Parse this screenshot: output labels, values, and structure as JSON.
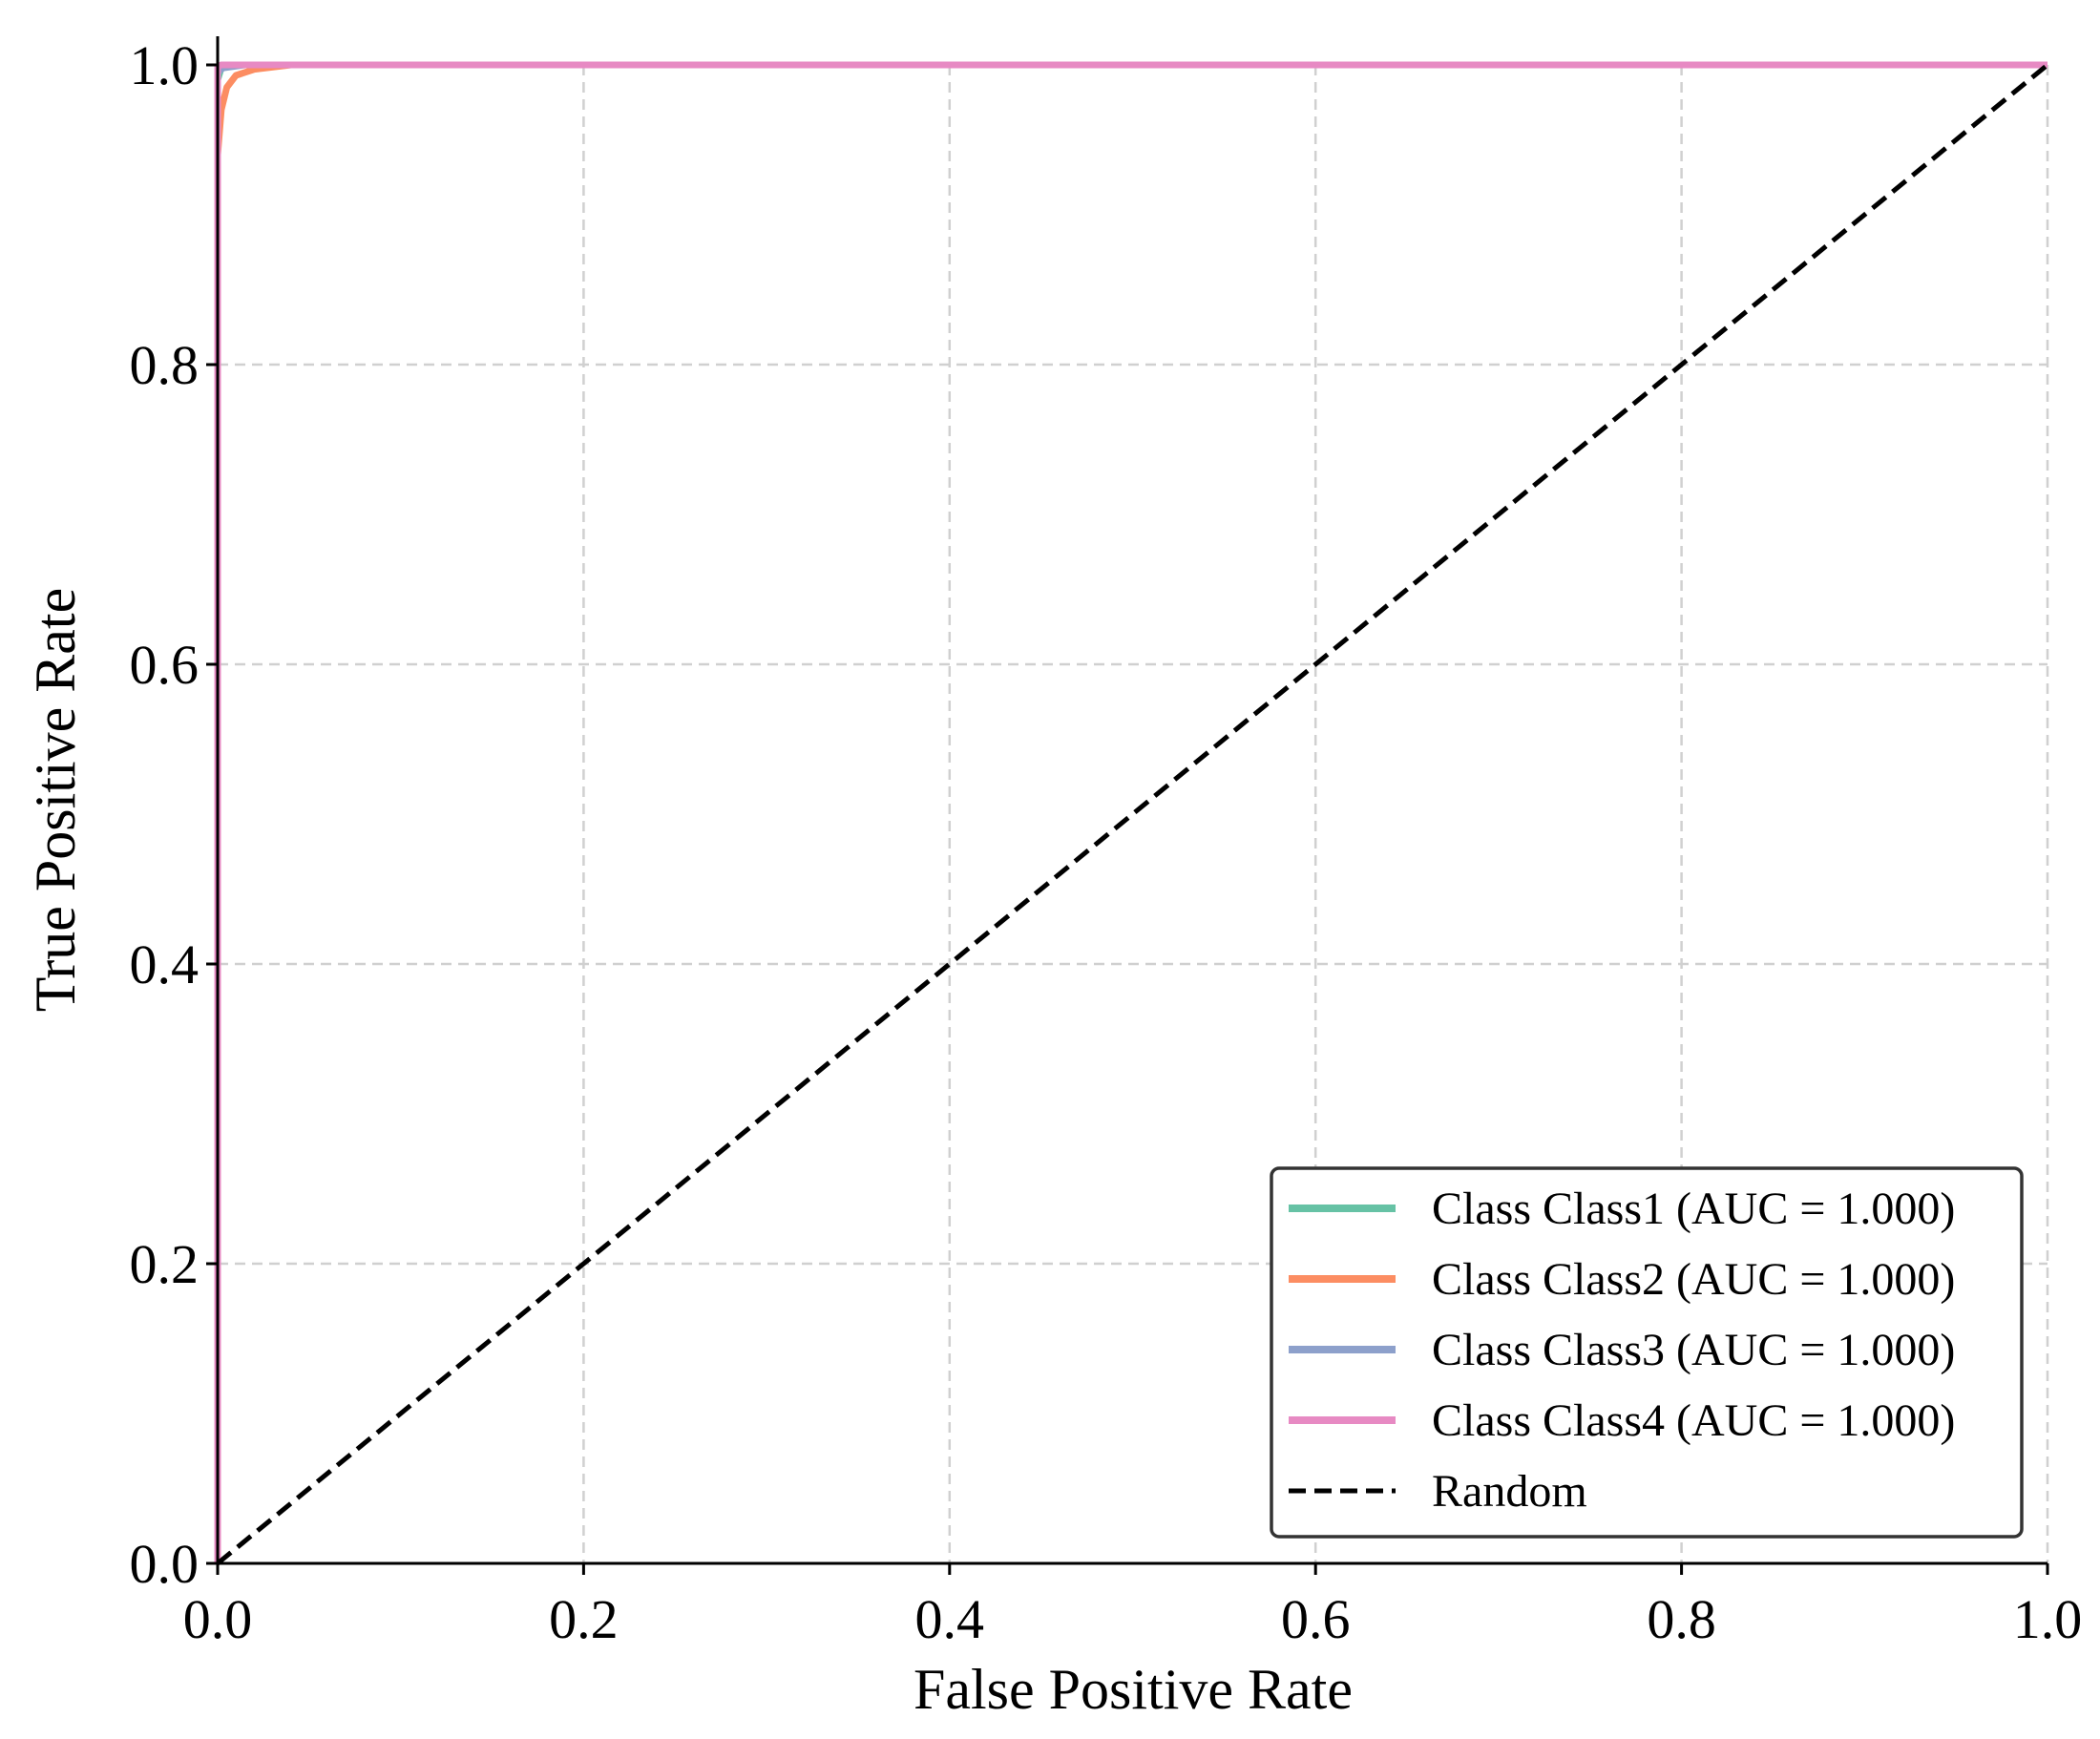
{
  "chart_data": {
    "type": "line",
    "title": "",
    "xlabel": "False Positive Rate",
    "ylabel": "True Positive Rate",
    "xlim": [
      0.0,
      1.0
    ],
    "ylim": [
      0.0,
      1.0
    ],
    "xticks": [
      "0.0",
      "0.2",
      "0.4",
      "0.6",
      "0.8",
      "1.0"
    ],
    "yticks": [
      "0.0",
      "0.2",
      "0.4",
      "0.6",
      "0.8",
      "1.0"
    ],
    "grid": true,
    "legend_position": "bottom-right",
    "series": [
      {
        "name": "Class Class1 (AUC = 1.000)",
        "color": "#66c2a5",
        "x": [
          0.0,
          0.0,
          0.002,
          0.01,
          1.0
        ],
        "y": [
          0.0,
          0.99,
          0.998,
          1.0,
          1.0
        ]
      },
      {
        "name": "Class Class2 (AUC = 1.000)",
        "color": "#fc8d62",
        "x": [
          0.0,
          0.0,
          0.002,
          0.005,
          0.01,
          0.02,
          0.04,
          1.0
        ],
        "y": [
          0.0,
          0.94,
          0.97,
          0.985,
          0.993,
          0.997,
          1.0,
          1.0
        ]
      },
      {
        "name": "Class Class3 (AUC = 1.000)",
        "color": "#8da0cb",
        "x": [
          0.0,
          0.0,
          0.003,
          0.015,
          1.0
        ],
        "y": [
          0.0,
          0.995,
          0.998,
          1.0,
          1.0
        ]
      },
      {
        "name": "Class Class4 (AUC = 1.000)",
        "color": "#e78ac3",
        "x": [
          0.0,
          0.0,
          0.002,
          1.0
        ],
        "y": [
          0.0,
          0.999,
          1.0,
          1.0
        ]
      },
      {
        "name": "Random",
        "color": "#000000",
        "dashed": true,
        "x": [
          0.0,
          1.0
        ],
        "y": [
          0.0,
          1.0
        ]
      }
    ]
  }
}
